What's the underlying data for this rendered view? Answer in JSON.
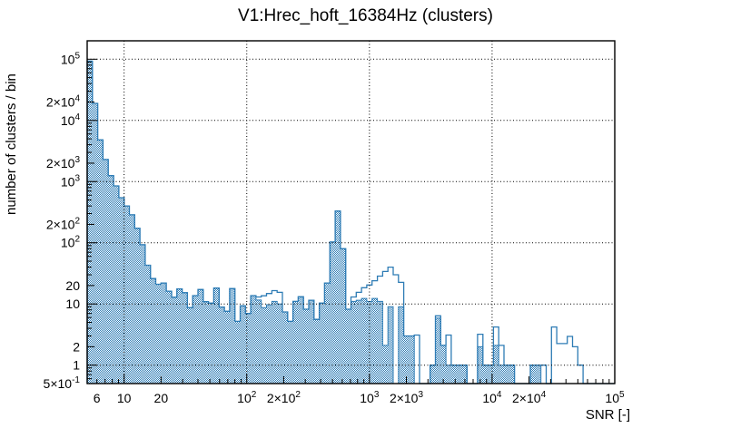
{
  "chart_data": {
    "type": "bar",
    "subtype": "histogram-log-log",
    "title": "V1:Hrec_hoft_16384Hz (clusters)",
    "xlabel": "SNR [-]",
    "ylabel": "number of clusters / bin",
    "xscale": "log",
    "yscale": "log",
    "xlim": [
      5,
      100000
    ],
    "ylim": [
      0.5,
      200000
    ],
    "n_bins": 100,
    "bin_edges_rule": "100 log-uniform bins from 5 to 100000",
    "grid": "dotted black lines at decade values, both axes",
    "legend": "none",
    "color": "#2e7cb5",
    "frame_color": "#000000",
    "x_grid": [
      10,
      100,
      1000,
      10000
    ],
    "y_grid": [
      1,
      10,
      100,
      1000,
      10000,
      100000
    ],
    "x_ticks": [
      {
        "v": 6,
        "b": "6"
      },
      {
        "v": 10,
        "b": "10"
      },
      {
        "v": 20,
        "b": "20"
      },
      {
        "v": 100,
        "b": "10",
        "e": "2"
      },
      {
        "v": 200,
        "b": "2×10",
        "e": "2"
      },
      {
        "v": 1000,
        "b": "10",
        "e": "3"
      },
      {
        "v": 2000,
        "b": "2×10",
        "e": "3"
      },
      {
        "v": 10000,
        "b": "10",
        "e": "4"
      },
      {
        "v": 20000,
        "b": "2×10",
        "e": "4"
      },
      {
        "v": 100000,
        "b": "10",
        "e": "5"
      }
    ],
    "y_ticks": [
      {
        "v": 100000,
        "b": "10",
        "e": "5"
      },
      {
        "v": 20000,
        "b": "2×10",
        "e": "4"
      },
      {
        "v": 10000,
        "b": "10",
        "e": "4"
      },
      {
        "v": 2000,
        "b": "2×10",
        "e": "3"
      },
      {
        "v": 1000,
        "b": "10",
        "e": "3"
      },
      {
        "v": 200,
        "b": "2×10",
        "e": "2"
      },
      {
        "v": 100,
        "b": "10",
        "e": "2"
      },
      {
        "v": 20,
        "b": "20"
      },
      {
        "v": 10,
        "b": "10"
      },
      {
        "v": 2,
        "b": "2"
      },
      {
        "v": 1,
        "b": "1"
      },
      {
        "v": 0.5,
        "b": "5×10",
        "e": "-1"
      }
    ],
    "series": [
      {
        "name": "filled_hatched_histogram",
        "style": "checker-hatch fill with solid edge",
        "values": [
          93000,
          19000,
          4800,
          2300,
          1250,
          850,
          545,
          400,
          286,
          172,
          93,
          43,
          26,
          21,
          22,
          16.2,
          12.9,
          17.6,
          15.3,
          8.7,
          13.7,
          17.2,
          10.9,
          10.3,
          18.2,
          8.9,
          7.6,
          17.8,
          5.2,
          9.3,
          7,
          13.7,
          11.6,
          8.7,
          9.7,
          11,
          10,
          7.4,
          5.2,
          11,
          13.1,
          8.2,
          11.5,
          5.6,
          10.3,
          22,
          103,
          330,
          80,
          8.2,
          11,
          11.5,
          12.3,
          11,
          12.3,
          11,
          2.1,
          9,
          0,
          9,
          3,
          3,
          0,
          0,
          0,
          1,
          5.9,
          2.1,
          1,
          1,
          1,
          1,
          0,
          0,
          2,
          1,
          1,
          2.1,
          1,
          1,
          1,
          0,
          0,
          0,
          1,
          1,
          0,
          0,
          0,
          0,
          0,
          0,
          0,
          0,
          0,
          0,
          0,
          0,
          0,
          0
        ]
      },
      {
        "name": "outline_histogram",
        "style": "unfilled step outline",
        "values": [
          93000,
          19000,
          4800,
          2300,
          1250,
          850,
          545,
          400,
          286,
          172,
          93,
          43,
          26,
          21,
          22,
          16.2,
          12.9,
          17.6,
          15.3,
          8.7,
          13.7,
          17.2,
          10.9,
          10.3,
          18.2,
          8.9,
          7.6,
          17.8,
          5.2,
          9.3,
          7,
          13.7,
          13,
          13.6,
          14.8,
          16.5,
          15.5,
          7.4,
          5.2,
          11,
          13.1,
          8.2,
          11.5,
          5.6,
          10.3,
          22,
          103,
          330,
          80,
          8.2,
          13,
          15.5,
          18.4,
          20.4,
          24,
          28.5,
          34,
          40,
          30,
          22.5,
          3,
          3,
          3.1,
          0,
          0,
          1,
          6.4,
          2.1,
          3.1,
          1,
          1,
          1,
          0,
          0,
          3.2,
          1,
          1,
          4.2,
          2.1,
          1,
          1,
          0,
          0,
          0,
          1,
          1,
          1,
          0,
          4.2,
          2.25,
          2.25,
          2.95,
          2,
          1,
          0,
          0,
          0,
          0,
          0,
          0
        ]
      }
    ]
  }
}
